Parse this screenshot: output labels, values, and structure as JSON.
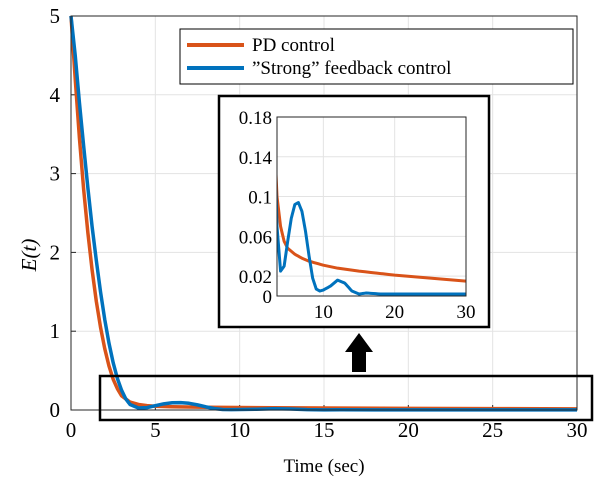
{
  "chart_data": {
    "type": "line",
    "xlabel": "Time (sec)",
    "ylabel": "E(t)",
    "xlim": [
      0,
      30
    ],
    "ylim": [
      0,
      5
    ],
    "xticks": [
      "0",
      "5",
      "10",
      "15",
      "20",
      "25",
      "30"
    ],
    "yticks": [
      "0",
      "1",
      "2",
      "3",
      "4",
      "5"
    ],
    "grid": true,
    "legend_position": "top-right",
    "series": [
      {
        "name": "PD control",
        "color": "#D95319",
        "x": [
          0,
          0.25,
          0.5,
          0.75,
          1,
          1.25,
          1.5,
          1.75,
          2,
          2.25,
          2.5,
          2.75,
          3,
          3.5,
          4,
          4.5,
          5,
          6,
          7,
          8,
          10,
          12,
          15,
          20,
          25,
          30
        ],
        "y": [
          5.0,
          4.2,
          3.45,
          2.8,
          2.25,
          1.78,
          1.38,
          1.05,
          0.78,
          0.56,
          0.39,
          0.27,
          0.18,
          0.1,
          0.07,
          0.055,
          0.048,
          0.042,
          0.038,
          0.035,
          0.031,
          0.028,
          0.025,
          0.021,
          0.018,
          0.015
        ]
      },
      {
        "name": "”Strong” feedback control",
        "color": "#0072BD",
        "x": [
          0,
          0.25,
          0.5,
          0.75,
          1,
          1.25,
          1.5,
          1.75,
          2,
          2.25,
          2.5,
          2.75,
          3,
          3.25,
          3.5,
          4,
          4.5,
          5,
          5.5,
          6,
          6.5,
          7,
          7.5,
          8,
          8.5,
          9,
          9.5,
          10,
          11,
          12,
          13,
          14,
          15,
          16,
          18,
          20,
          25,
          30
        ],
        "y": [
          5.0,
          4.5,
          3.9,
          3.35,
          2.82,
          2.33,
          1.9,
          1.5,
          1.15,
          0.85,
          0.6,
          0.4,
          0.25,
          0.14,
          0.07,
          0.025,
          0.03,
          0.055,
          0.078,
          0.092,
          0.094,
          0.085,
          0.065,
          0.04,
          0.018,
          0.007,
          0.005,
          0.006,
          0.01,
          0.016,
          0.013,
          0.005,
          0.002,
          0.003,
          0.002,
          0.002,
          0.002,
          0.002
        ]
      }
    ],
    "inset": {
      "xlim": [
        3.5,
        30
      ],
      "ylim": [
        0,
        0.18
      ],
      "xticks": [
        "10",
        "20",
        "30"
      ],
      "yticks": [
        "0",
        "0.02",
        "0.06",
        "0.1",
        "0.14",
        "0.18"
      ]
    }
  }
}
